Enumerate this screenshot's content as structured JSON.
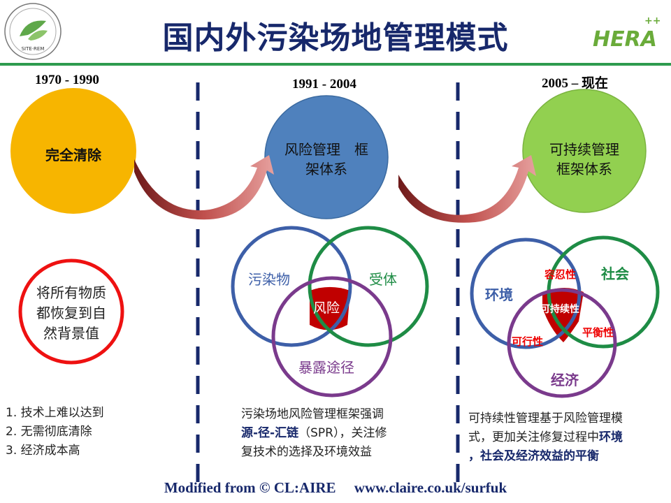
{
  "header": {
    "title": "国内外污染场地管理模式",
    "left_logo": "SITE·REM",
    "right_logo": "HERA++"
  },
  "eras": [
    {
      "period": "1970 - 1990",
      "circle_label": "完全清除",
      "circle_color": "#f7b500",
      "goal": [
        "将所有物质",
        "都恢复到自",
        "然背景值"
      ],
      "notes": [
        "1. 技术上难以达到",
        "2. 无需彻底清除",
        "3. 经济成本高"
      ]
    },
    {
      "period": "1991 - 2004",
      "circle_label": [
        "风险管理　框",
        "架体系"
      ],
      "circle_color": "#4f81bd",
      "venn": {
        "a": "污染物",
        "b": "受体",
        "c": "暴露途径",
        "center": "风险"
      },
      "notes": {
        "line1": "污染场地风险管理框架强调",
        "bold": "源-径-汇链",
        "line2_rest": "（SPR），关注修",
        "line3": "复技术的选择及环境效益"
      }
    },
    {
      "period": "2005 – 现在",
      "circle_label": [
        "可持续管理",
        "框架体系"
      ],
      "circle_color": "#92d050",
      "venn": {
        "a": "环境",
        "b": "社会",
        "c": "经济",
        "ab": "容忍性",
        "ac": "可行性",
        "bc": "平衡性",
        "center": "可持续性"
      },
      "notes": {
        "line1": "可持续性管理基于风险管理模",
        "line2": "式，更加关注修复过程中",
        "bold2": "环境",
        "bold3": "，社会及经济效益的平衡"
      }
    }
  ],
  "footer": "Modified from © CL:AIRE     www.claire.co.uk/surfuk",
  "colors": {
    "title": "#17286b",
    "divider": "#2e9b4e",
    "accent_red": "#c00000"
  }
}
